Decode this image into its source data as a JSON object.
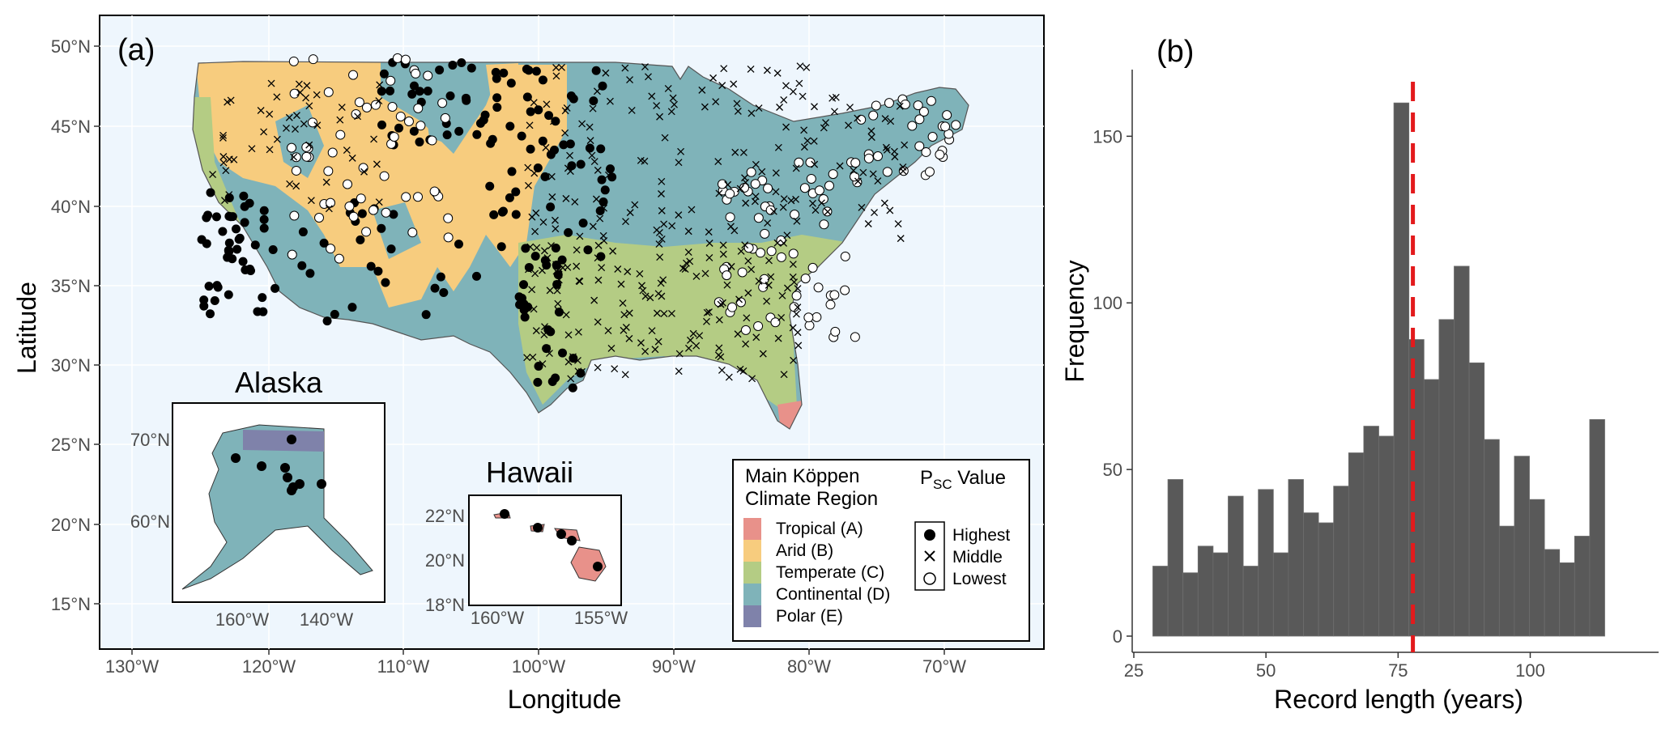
{
  "panel_a": {
    "label": "(a)",
    "x_title": "Longitude",
    "y_title": "Latitude",
    "x_ticks": [
      "130°W",
      "120°W",
      "110°W",
      "100°W",
      "90°W",
      "80°W",
      "70°W"
    ],
    "y_ticks": [
      "50°N",
      "45°N",
      "40°N",
      "35°N",
      "30°N",
      "25°N",
      "20°N",
      "15°N"
    ],
    "alaska": {
      "title": "Alaska",
      "x_ticks": [
        "160°W",
        "140°W"
      ],
      "y_ticks": [
        "70°N",
        "60°N"
      ]
    },
    "hawaii": {
      "title": "Hawaii",
      "x_ticks": [
        "160°W",
        "155°W"
      ],
      "y_ticks": [
        "22°N",
        "20°N",
        "18°N"
      ]
    },
    "legend": {
      "climate_title_1": "Main Köppen",
      "climate_title_2": "Climate Region",
      "climate": [
        {
          "label": "Tropical (A)",
          "color": "#e8918a"
        },
        {
          "label": "Arid (B)",
          "color": "#f7cc7e"
        },
        {
          "label": "Temperate (C)",
          "color": "#b4cc84"
        },
        {
          "label": "Continental (D)",
          "color": "#7fb3b9"
        },
        {
          "label": "Polar (E)",
          "color": "#7f82aa"
        }
      ],
      "psc_title_main": "P",
      "psc_title_sub": "SC",
      "psc_title_rest": " Value",
      "psc": [
        {
          "label": "Highest",
          "symbol": "filled-circle"
        },
        {
          "label": "Middle",
          "symbol": "cross"
        },
        {
          "label": "Lowest",
          "symbol": "open-circle"
        }
      ]
    }
  },
  "panel_b": {
    "label": "(b)",
    "chart_data": {
      "type": "bar",
      "xlabel": "Record length (years)",
      "ylabel": "Frequency",
      "x_ticks": [
        25,
        50,
        75,
        100
      ],
      "y_ticks": [
        0,
        50,
        100,
        150
      ],
      "xlim": [
        25,
        120
      ],
      "ylim": [
        0,
        170
      ],
      "bin_width": 2.85,
      "bin_start": 28.6,
      "values": [
        21,
        47,
        19,
        27,
        25,
        42,
        21,
        44,
        25,
        47,
        37,
        34,
        45,
        55,
        63,
        60,
        160,
        89,
        77,
        95,
        111,
        82,
        59,
        33,
        54,
        41,
        26,
        22,
        30,
        65
      ],
      "median_line_x": 77.8,
      "median_line_color": "#e31a1c",
      "bar_color": "#595959"
    }
  }
}
